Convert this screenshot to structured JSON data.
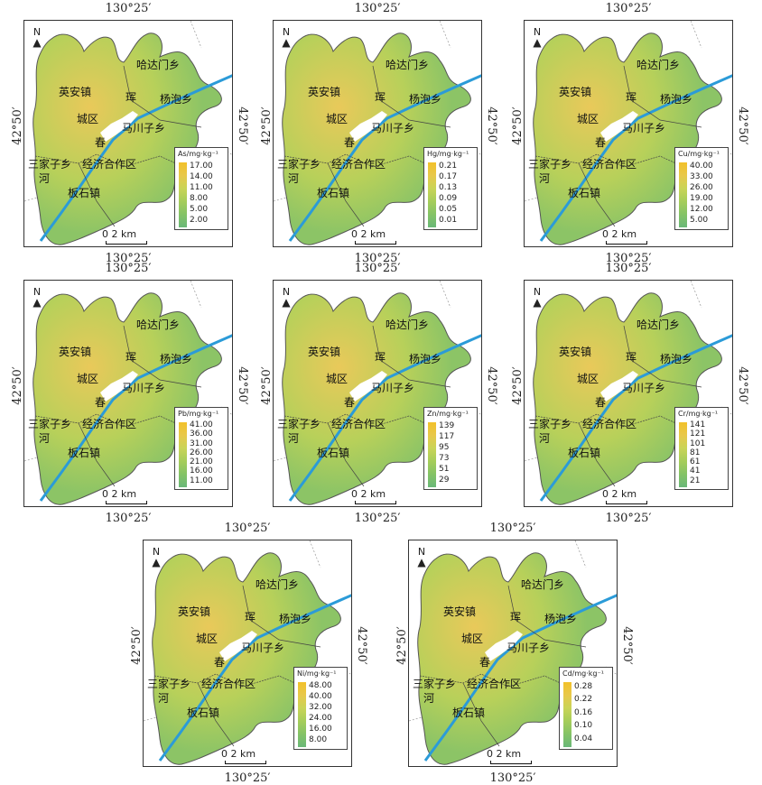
{
  "coordinates": {
    "longitude": "130°25′",
    "latitude": "42°50′"
  },
  "place_labels": {
    "yingan": "英安镇",
    "hadamen": "哈达门乡",
    "hun": "珲",
    "yangpao": "杨泡乡",
    "chengqu": "城区",
    "chun": "春",
    "machuanzi": "马川子乡",
    "sanjiazi": "三家子乡",
    "he": "河",
    "jingji": "经济合作区",
    "banshi": "板石镇"
  },
  "north_label": "N",
  "scale_label": "0  2 km",
  "colors": {
    "low": "#6ab878",
    "mid": "#a5cd5a",
    "high": "#f2c12a",
    "river": "#2b9bd8",
    "urban": "#ffffff"
  },
  "panels": [
    {
      "legend_title": "As/mg·kg⁻¹",
      "levels": [
        "17.00",
        "14.00",
        "11.00",
        "8.00",
        "5.00",
        "2.00"
      ]
    },
    {
      "legend_title": "Hg/mg·kg⁻¹",
      "levels": [
        "0.21",
        "0.17",
        "0.13",
        "0.09",
        "0.05",
        "0.01"
      ]
    },
    {
      "legend_title": "Cu/mg·kg⁻¹",
      "levels": [
        "40.00",
        "33.00",
        "26.00",
        "19.00",
        "12.00",
        "5.00"
      ]
    },
    {
      "legend_title": "Pb/mg·kg⁻¹",
      "levels": [
        "41.00",
        "36.00",
        "31.00",
        "26.00",
        "21.00",
        "16.00",
        "11.00"
      ]
    },
    {
      "legend_title": "Zn/mg·kg⁻¹",
      "levels": [
        "139",
        "117",
        "95",
        "73",
        "51",
        "29"
      ]
    },
    {
      "legend_title": "Cr/mg·kg⁻¹",
      "levels": [
        "141",
        "121",
        "101",
        "81",
        "61",
        "41",
        "21"
      ]
    },
    {
      "legend_title": "Ni/mg·kg⁻¹",
      "levels": [
        "48.00",
        "40.00",
        "32.00",
        "24.00",
        "16.00",
        "8.00"
      ]
    },
    {
      "legend_title": "Cd/mg·kg⁻¹",
      "levels": [
        "0.28",
        "0.22",
        "0.16",
        "0.10",
        "0.04"
      ]
    }
  ]
}
